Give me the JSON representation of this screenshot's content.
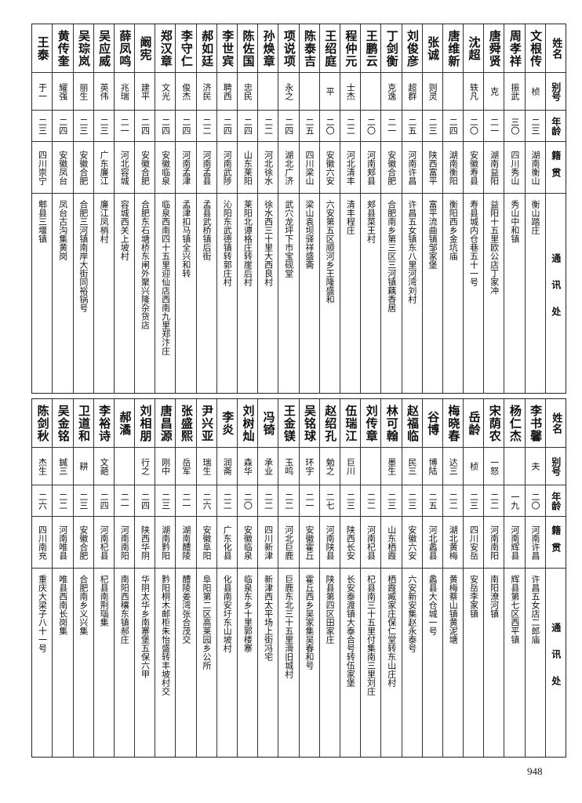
{
  "headers": {
    "name": "姓名",
    "alias": "别号",
    "age": "年龄",
    "native": "籍贯",
    "address": "通讯处"
  },
  "sections": [
    {
      "rows": [
        {
          "name": "文根传",
          "alias": "桢",
          "age": "二三",
          "native": "湖南衡山",
          "address": "衡山踏庄"
        },
        {
          "name": "周孝祥",
          "alias": "振武",
          "age": "三〇",
          "native": "四川秀山",
          "address": "秀山中和镇"
        },
        {
          "name": "唐舜贤",
          "alias": "克",
          "age": "二一",
          "native": "湖南益阳",
          "address": "益阳十五里欧公店丁家冲"
        },
        {
          "name": "沈超",
          "alias": "轶凡",
          "age": "二〇",
          "native": "安徽寿县",
          "address": "寿县城内仓巷五十一号"
        },
        {
          "name": "唐维新",
          "alias": "",
          "age": "二四",
          "native": "湖南衡阳",
          "address": "衡阳西乡金坑庙"
        },
        {
          "name": "张诚",
          "alias": "则灵",
          "age": "二三",
          "native": "陕西富平",
          "address": "富平流曲镇邹家堡"
        },
        {
          "name": "刘俊彦",
          "alias": "超群",
          "age": "二五",
          "native": "河南许昌",
          "address": "许昌五女镇东八里河湾刘村"
        },
        {
          "name": "丁剑衡",
          "alias": "克逸",
          "age": "二一",
          "native": "安徽合肥",
          "address": "合肥南乡第三区三河镇藕香居"
        },
        {
          "name": "王鹏云",
          "alias": "",
          "age": "二〇",
          "native": "河南郏县",
          "address": "郏县菜王村"
        },
        {
          "name": "程仲元",
          "alias": "士杰",
          "age": "二二",
          "native": "河北清丰",
          "address": "清丰程庄"
        },
        {
          "name": "王绍庭",
          "alias": "平",
          "age": "二〇",
          "native": "安徽六安",
          "address": "六安第五区顺河乡王隆盛和"
        },
        {
          "name": "陈泰吉",
          "alias": "",
          "age": "二五",
          "native": "四川梁山",
          "address": "梁山袁坝驿祥盛斋"
        },
        {
          "name": "项说项",
          "alias": "永之",
          "age": "二四",
          "native": "湖北广济",
          "address": "武穴龙坪下市宝砚堂"
        },
        {
          "name": "孙焕章",
          "alias": "",
          "age": "二二",
          "native": "河北徐水",
          "address": "徐水西三十里大西良村"
        },
        {
          "name": "陈佐国",
          "alias": "忠民",
          "age": "二四",
          "native": "山东莱阳",
          "address": "莱阳北谭格庄转崖后村"
        },
        {
          "name": "李世宾",
          "alias": "聘西",
          "age": "二四",
          "native": "河南武陟",
          "address": "沁阳东武德镇转郭庄村"
        },
        {
          "name": "郝如廷",
          "alias": "济民",
          "age": "二二",
          "native": "河南孟县",
          "address": "孟县武桥镇后街"
        },
        {
          "name": "李守仁",
          "alias": "俊杰",
          "age": "二四",
          "native": "河南孟津",
          "address": "孟津扣马镇全兴和转"
        },
        {
          "name": "郑汉章",
          "alias": "文光",
          "age": "二四",
          "native": "安徽临泉",
          "address": "临泉西南四十五里迎仙店西南九里郑汴庄"
        },
        {
          "name": "阚宪",
          "alias": "建平",
          "age": "二四",
          "native": "安徽合肥",
          "address": "合肥东石塘桥东闸外聚兴隆杂货店"
        },
        {
          "name": "薛凤鸣",
          "alias": "兆瑞",
          "age": "二一",
          "native": "河北容城",
          "address": "容城西关上坡村"
        },
        {
          "name": "吴应威",
          "alias": "英伟",
          "age": "二三",
          "native": "广东廉江",
          "address": "廉江凤梢村"
        },
        {
          "name": "吴琮岚",
          "alias": "丽生",
          "age": "二三",
          "native": "安徽合肥",
          "address": "合肥三河镇南岸大街同裕锅号"
        },
        {
          "name": "黄传奎",
          "alias": "耀强",
          "age": "二四",
          "native": "安徽凤台",
          "address": "凤台古沟集黄岗"
        },
        {
          "name": "王泰",
          "alias": "于一",
          "age": "二三",
          "native": "四川崇宁",
          "address": "郫县三堰镇"
        }
      ]
    },
    {
      "rows": [
        {
          "name": "李书馨",
          "alias": "夫",
          "age": "二〇",
          "native": "河南许昌",
          "address": "许昌五女店二郎庙"
        },
        {
          "name": "杨仁杰",
          "alias": "",
          "age": "一九",
          "native": "河南辉县",
          "address": "辉县第七区西平镇"
        },
        {
          "name": "宋荫农",
          "alias": "一怒",
          "age": "二二",
          "native": "河南南阳",
          "address": "南阳潦河镇"
        },
        {
          "name": "岳龄",
          "alias": "桢",
          "age": "二三",
          "native": "四川安岳",
          "address": "安岳李家镇"
        },
        {
          "name": "梅晓春",
          "alias": "达三",
          "age": "二二",
          "native": "湖北黄梅",
          "address": "黄梅蔡山镇黄泥塘"
        },
        {
          "name": "谷博",
          "alias": "博陆",
          "age": "二五",
          "native": "河北蠡县",
          "address": "蠡县大仓城一号"
        },
        {
          "name": "赵福临",
          "alias": "民三",
          "age": "二三",
          "native": "安徽六安",
          "address": "六安新安集赵永泰号"
        },
        {
          "name": "林可翰",
          "alias": "墨生",
          "age": "二三",
          "native": "山东栖霞",
          "address": "栖霞臧家庄保仁堂转东山庄村"
        },
        {
          "name": "刘传章",
          "alias": "",
          "age": "二二",
          "native": "河南杞县",
          "address": "杞县南三十五里付集南三里刘庄"
        },
        {
          "name": "伍瑞江",
          "alias": "巨川",
          "age": "二三",
          "native": "陕西长安",
          "address": "长安泰渡镇大泰合号转伍家堡"
        },
        {
          "name": "赵绍孔",
          "alias": "勉之",
          "age": "二七",
          "native": "河南陕县",
          "address": "陕县第四区田家庄"
        },
        {
          "name": "吴铭球",
          "alias": "环宇",
          "age": "二一",
          "native": "安徽霍丘",
          "address": "霍丘西乡吴家集吴春和号"
        },
        {
          "name": "王金镁",
          "alias": "玉鸣",
          "age": "二二",
          "native": "河北巨鹿",
          "address": "巨鹿东北三十五里滑旧城村"
        },
        {
          "name": "冯锜",
          "alias": "承业",
          "age": "二二",
          "native": "四川新津",
          "address": "新津西太平场上街冯宅"
        },
        {
          "name": "刘树灿",
          "alias": "森华",
          "age": "二〇",
          "native": "安徽临泉",
          "address": "临泉东乡十里郭楼寨"
        },
        {
          "name": "李炎",
          "alias": "润斋",
          "age": "二二",
          "native": "广东化县",
          "address": "化县南安圩东山坡村"
        },
        {
          "name": "尹兴亚",
          "alias": "瑞生",
          "age": "二六",
          "native": "安徽阜阳",
          "address": "阜阳第二区高莱园乡公所"
        },
        {
          "name": "张盛熙",
          "alias": "岳军",
          "age": "二一",
          "native": "湖南醴陵",
          "address": "醴陵姜湾张合茂交"
        },
        {
          "name": "唐昌源",
          "alias": "刚中",
          "age": "二三",
          "native": "湖南黔阳",
          "address": "黔阳桐木邮柜朱怡盛转丰坡村交"
        },
        {
          "name": "刘相朋",
          "alias": "行之",
          "age": "二四",
          "native": "陕西华阴",
          "address": "华阴太华乡南寨堡五保六甲"
        },
        {
          "name": "郝潏",
          "alias": "",
          "age": "二一",
          "native": "河南南阳",
          "address": "南阳西穰东镇郝庄"
        },
        {
          "name": "李裕诗",
          "alias": "文葩",
          "age": "二四",
          "native": "河南杞县",
          "address": "杞县南荆瑙集"
        },
        {
          "name": "卫道和",
          "alias": "耕",
          "age": "二三",
          "native": "安徽合肥",
          "address": "合肥南乡义兴集"
        },
        {
          "name": "吴金铭",
          "alias": "鍼三",
          "age": "二二",
          "native": "河南唯县",
          "address": "唯县西南长岗集"
        },
        {
          "name": "陈剑秋",
          "alias": "杰生",
          "age": "二六",
          "native": "四川南充",
          "address": "重庆大梁子八十一号"
        }
      ]
    }
  ],
  "page_number": "948"
}
